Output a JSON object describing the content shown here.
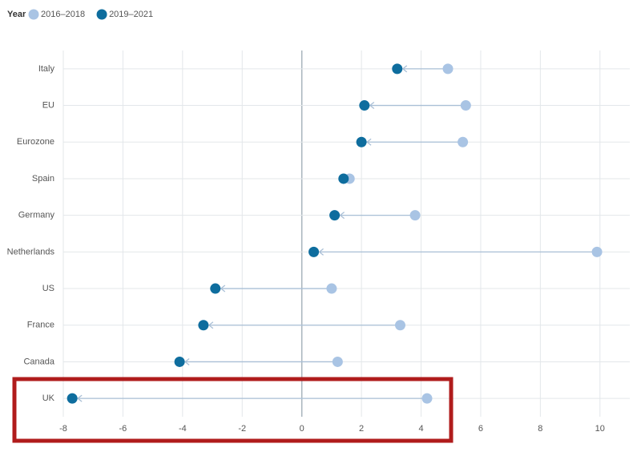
{
  "chart_data": {
    "type": "dumbbell",
    "legend_title": "Year",
    "categories": [
      "Italy",
      "EU",
      "Eurozone",
      "Spain",
      "Germany",
      "Netherlands",
      "US",
      "France",
      "Canada",
      "UK"
    ],
    "series": [
      {
        "name": "2016–2018",
        "color": "#a9c4e4",
        "values": [
          4.9,
          5.5,
          5.4,
          1.6,
          3.8,
          9.9,
          1.0,
          3.3,
          1.2,
          4.2
        ]
      },
      {
        "name": "2019–2021",
        "color": "#0e6d9e",
        "values": [
          3.2,
          2.1,
          2.0,
          1.4,
          1.1,
          0.4,
          -2.9,
          -3.3,
          -4.1,
          -7.7
        ]
      }
    ],
    "xlim": [
      -8,
      11
    ],
    "xticks": [
      -8,
      -6,
      -4,
      -2,
      0,
      2,
      4,
      6,
      8,
      10
    ],
    "grid": true
  }
}
